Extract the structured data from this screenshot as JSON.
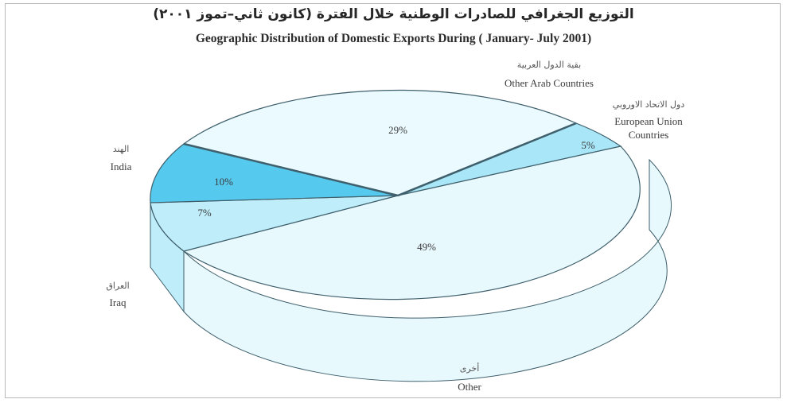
{
  "title_ar": "التوزيع الجغرافي للصادرات الوطنية خلال الفترة (كانون ثاني–تموز ٢٠٠١)",
  "title_en": "Geographic Distribution of Domestic Exports During ( January- July 2001)",
  "chart_data": {
    "type": "pie",
    "title": "Geographic Distribution of Domestic Exports During ( January- July 2001)",
    "slices": [
      {
        "name_ar": "بقية الدول العربية",
        "name_en": "Other Arab Countries",
        "value": 29,
        "label": "29%",
        "color": "#eafaff"
      },
      {
        "name_ar": "دول الاتحاد الاوروبي",
        "name_en": "European Union Countries",
        "value": 5,
        "label": "5%",
        "color": "#a9e6f7"
      },
      {
        "name_ar": "أخرى",
        "name_en": "Other",
        "value": 49,
        "label": "49%",
        "color": "#e8f9fe"
      },
      {
        "name_ar": "العراق",
        "name_en": "Iraq",
        "value": 7,
        "label": "7%",
        "color": "#bfeefa"
      },
      {
        "name_ar": "الهند",
        "name_en": "India",
        "value": 10,
        "label": "10%",
        "color": "#56c9ee"
      }
    ],
    "style": "3d-pie"
  },
  "labels": {
    "other_arab": {
      "ar": "بقية الدول العربية",
      "en": "Other Arab Countries"
    },
    "eu": {
      "ar": "دول الاتحاد الاوروبي",
      "en_line1": "European Union",
      "en_line2": "Countries"
    },
    "india": {
      "ar": "الهند",
      "en": "India"
    },
    "iraq": {
      "ar": "العراق",
      "en": "Iraq"
    },
    "other": {
      "ar": "أخرى",
      "en": "Other"
    }
  },
  "colors": {
    "edge": "#3e5f6b",
    "side_light": "#dff6fd"
  }
}
